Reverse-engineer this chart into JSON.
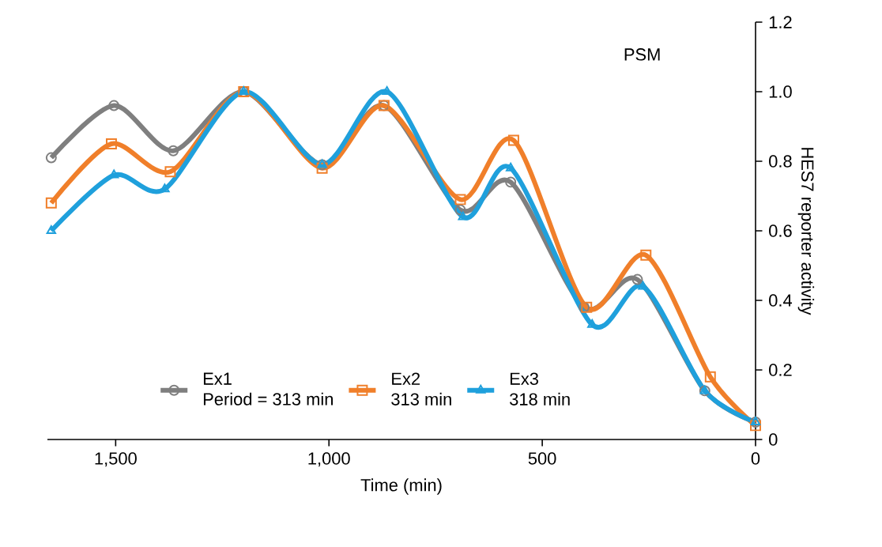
{
  "chart_data": {
    "type": "line",
    "title": "PSM",
    "xlabel": "Time (min)",
    "ylabel": "HES7 reporter activity",
    "xlim": [
      1660,
      0
    ],
    "ylim": [
      0,
      1.2
    ],
    "xticks": [
      {
        "value": 1500,
        "label": "1,500"
      },
      {
        "value": 1000,
        "label": "1,000"
      },
      500,
      0
    ],
    "yticks": [
      0,
      0.2,
      0.4,
      0.6,
      0.8,
      {
        "value": 1,
        "label": "1.0"
      },
      1.2
    ],
    "grid": false,
    "legend": "bottom",
    "annotations": [
      "Period = 313 min",
      "313 min",
      "318 min"
    ],
    "series": [
      {
        "name": "Ex1",
        "color": "#7f7f7f",
        "marker": "circle",
        "x": [
          1651,
          1504,
          1365,
          1200,
          1016,
          871,
          692,
          574,
          402,
          277,
          119,
          0
        ],
        "values": [
          0.81,
          0.96,
          0.83,
          1.0,
          0.79,
          0.96,
          0.66,
          0.74,
          0.38,
          0.46,
          0.14,
          0.05
        ]
      },
      {
        "name": "Ex2",
        "color": "#f07f2a",
        "marker": "square",
        "x": [
          1651,
          1510,
          1372,
          1200,
          1016,
          871,
          692,
          567,
          396,
          257,
          106,
          0
        ],
        "values": [
          0.68,
          0.85,
          0.77,
          1.0,
          0.78,
          0.96,
          0.69,
          0.86,
          0.38,
          0.53,
          0.18,
          0.04
        ]
      },
      {
        "name": "Ex3",
        "color": "#1fa0dc",
        "marker": "triangle",
        "x": [
          1651,
          1504,
          1385,
          1200,
          1016,
          864,
          686,
          574,
          383,
          264,
          119,
          0
        ],
        "values": [
          0.6,
          0.76,
          0.72,
          1.0,
          0.79,
          1.0,
          0.64,
          0.78,
          0.33,
          0.44,
          0.14,
          0.05
        ]
      }
    ]
  }
}
